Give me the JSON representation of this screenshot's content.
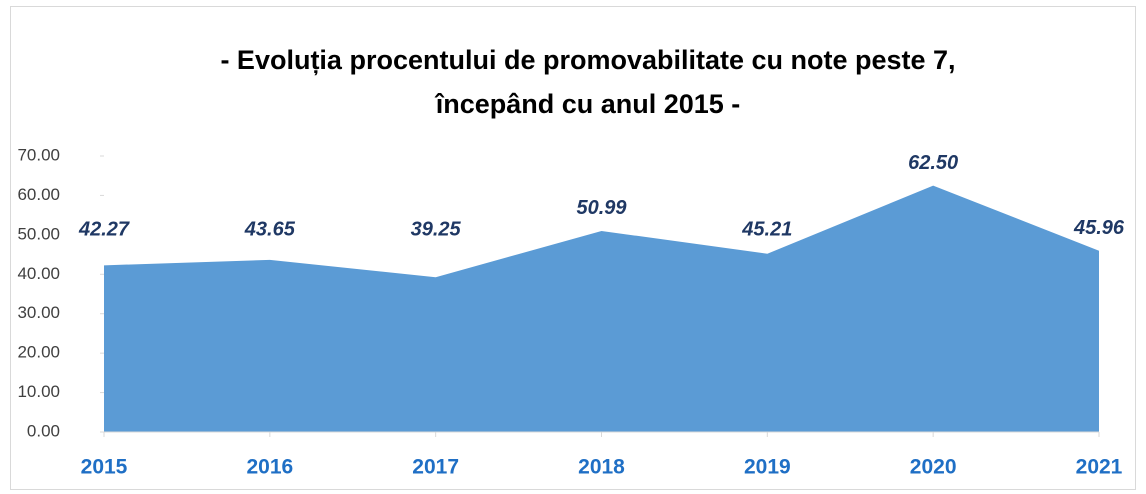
{
  "chart_data": {
    "type": "area",
    "title": [
      "- Evoluția procentului de promovabilitate cu note peste 7,",
      "începând cu anul 2015 -"
    ],
    "categories": [
      "2015",
      "2016",
      "2017",
      "2018",
      "2019",
      "2020",
      "2021"
    ],
    "values": [
      42.27,
      43.65,
      39.25,
      50.99,
      45.21,
      62.5,
      45.96
    ],
    "value_labels": [
      "42.27",
      "43.65",
      "39.25",
      "50.99",
      "45.21",
      "62.50",
      "45.96"
    ],
    "color": "#5b9bd5",
    "ylim": [
      0,
      70
    ],
    "yticks": [
      {
        "value": 0,
        "label": "0.00"
      },
      {
        "value": 10,
        "label": "10.00"
      },
      {
        "value": 20,
        "label": "20.00"
      },
      {
        "value": 30,
        "label": "30.00"
      },
      {
        "value": 40,
        "label": "40.00"
      },
      {
        "value": 50,
        "label": "50.00"
      },
      {
        "value": 60,
        "label": "60.00"
      },
      {
        "value": 70,
        "label": "70.00"
      }
    ]
  }
}
